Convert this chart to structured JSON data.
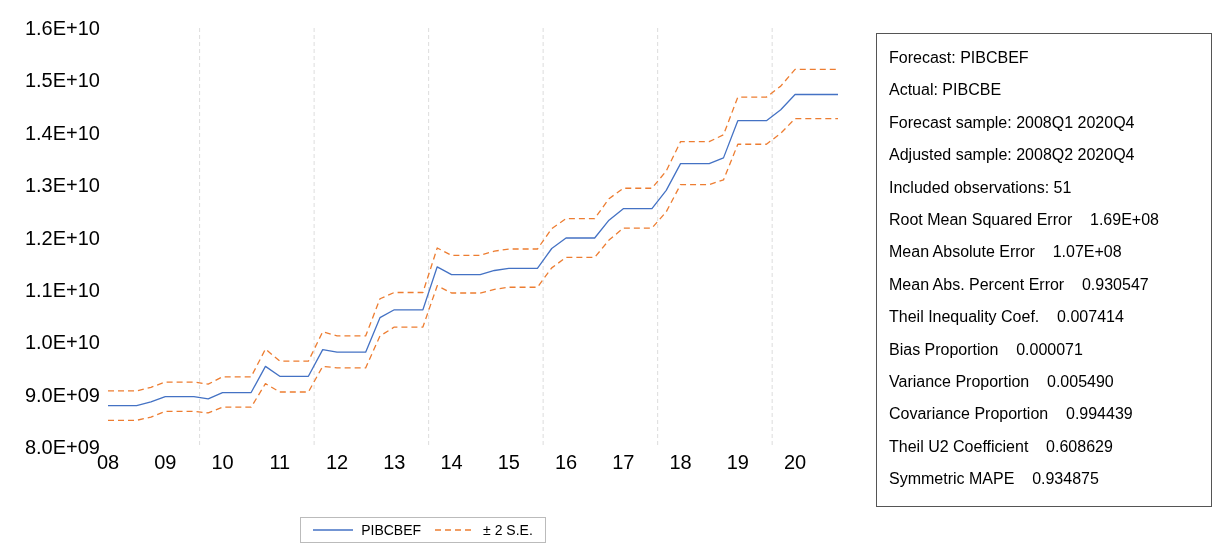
{
  "chart_data": [
    {
      "type": "line",
      "categories": [
        "08",
        null,
        null,
        null,
        "09",
        null,
        null,
        null,
        "10",
        null,
        null,
        null,
        "11",
        null,
        null,
        null,
        "12",
        null,
        null,
        null,
        "13",
        null,
        null,
        null,
        "14",
        null,
        null,
        null,
        "15",
        null,
        null,
        null,
        "16",
        null,
        null,
        null,
        "17",
        null,
        null,
        null,
        "18",
        null,
        null,
        null,
        "19",
        null,
        null,
        null,
        "20",
        null,
        null,
        null
      ],
      "series": [
        {
          "name": "PIBCBEF",
          "color": "#4472c4",
          "line_style": "solid",
          "values": [
            8790000000.0,
            8790000000.0,
            8790000000.0,
            8860000000.0,
            8960000000.0,
            8960000000.0,
            8960000000.0,
            8920000000.0,
            9040000000.0,
            9040000000.0,
            9040000000.0,
            9540000000.0,
            9350000000.0,
            9350000000.0,
            9350000000.0,
            9860000000.0,
            9810000000.0,
            9810000000.0,
            9810000000.0,
            10470000000.0,
            10620000000.0,
            10620000000.0,
            10620000000.0,
            11440000000.0,
            11290000000.0,
            11290000000.0,
            11290000000.0,
            11370000000.0,
            11410000000.0,
            11410000000.0,
            11410000000.0,
            11790000000.0,
            11990000000.0,
            11990000000.0,
            11990000000.0,
            12330000000.0,
            12550000000.0,
            12550000000.0,
            12550000000.0,
            12900000000.0,
            13410000000.0,
            13410000000.0,
            13410000000.0,
            13520000000.0,
            14230000000.0,
            14230000000.0,
            14230000000.0,
            14440000000.0,
            14730000000.0,
            14730000000.0,
            14730000000.0,
            14730000000.0
          ]
        },
        {
          "name": "± 2 S.E.",
          "color": "#ed7d31",
          "line_style": "dashed",
          "values": [
            9070000000.0,
            9070000000.0,
            9070000000.0,
            9140000000.0,
            9240000000.0,
            9240000000.0,
            9240000000.0,
            9200000000.0,
            9340000000.0,
            9340000000.0,
            9340000000.0,
            9870000000.0,
            9640000000.0,
            9640000000.0,
            9640000000.0,
            10200000000.0,
            10120000000.0,
            10120000000.0,
            10120000000.0,
            10830000000.0,
            10950000000.0,
            10950000000.0,
            10950000000.0,
            11800000000.0,
            11660000000.0,
            11660000000.0,
            11660000000.0,
            11740000000.0,
            11780000000.0,
            11780000000.0,
            11780000000.0,
            12170000000.0,
            12360000000.0,
            12360000000.0,
            12360000000.0,
            12740000000.0,
            12940000000.0,
            12940000000.0,
            12940000000.0,
            13270000000.0,
            13830000000.0,
            13830000000.0,
            13830000000.0,
            13960000000.0,
            14680000000.0,
            14680000000.0,
            14680000000.0,
            14890000000.0,
            15210000000.0,
            15210000000.0,
            15210000000.0,
            15210000000.0
          ]
        },
        {
          "color": "#ed7d31",
          "line_style": "dashed",
          "values": [
            8510000000.0,
            8510000000.0,
            8510000000.0,
            8570000000.0,
            8680000000.0,
            8680000000.0,
            8680000000.0,
            8650000000.0,
            8760000000.0,
            8760000000.0,
            8760000000.0,
            9210000000.0,
            9050000000.0,
            9050000000.0,
            9050000000.0,
            9540000000.0,
            9510000000.0,
            9510000000.0,
            9510000000.0,
            10120000000.0,
            10290000000.0,
            10290000000.0,
            10290000000.0,
            11080000000.0,
            10940000000.0,
            10940000000.0,
            10940000000.0,
            11010000000.0,
            11050000000.0,
            11050000000.0,
            11050000000.0,
            11420000000.0,
            11620000000.0,
            11620000000.0,
            11620000000.0,
            11950000000.0,
            12180000000.0,
            12180000000.0,
            12180000000.0,
            12490000000.0,
            13010000000.0,
            13010000000.0,
            13010000000.0,
            13100000000.0,
            13780000000.0,
            13780000000.0,
            13780000000.0,
            13990000000.0,
            14270000000.0,
            14270000000.0,
            14270000000.0,
            14270000000.0
          ]
        }
      ],
      "ylim": [
        8000000000.0,
        16000000000.0
      ],
      "yticks": [
        {
          "value": 8000000000.0,
          "label": "8.0E+09"
        },
        {
          "value": 9000000000.0,
          "label": "9.0E+09"
        },
        {
          "value": 10000000000.0,
          "label": "1.0E+10"
        },
        {
          "value": 11000000000.0,
          "label": "1.1E+10"
        },
        {
          "value": 12000000000.0,
          "label": "1.2E+10"
        },
        {
          "value": 13000000000.0,
          "label": "1.3E+10"
        },
        {
          "value": 14000000000.0,
          "label": "1.4E+10"
        },
        {
          "value": 15000000000.0,
          "label": "1.5E+10"
        },
        {
          "value": 16000000000.0,
          "label": "1.6E+10"
        }
      ],
      "grid": "x",
      "legend": "bottom",
      "marker": "none"
    },
    {
      "type": "other",
      "annotations": [
        "Forecast: PIBCBEF",
        "Actual: PIBCBE",
        "Forecast sample: 2008Q1 2020Q4",
        "Adjusted sample: 2008Q2 2020Q4",
        "Included observations: 51",
        "Root Mean Squared Error    1.69E+08",
        "Mean Absolute Error    1.07E+08",
        "Mean Abs. Percent Error    0.930547",
        "Theil Inequality Coef.    0.007414",
        "Bias Proportion    0.000071",
        "Variance Proportion    0.005490",
        "Covariance Proportion    0.994439",
        "Theil U2 Coefficient    0.608629",
        "Symmetric MAPE    0.934875"
      ]
    }
  ]
}
